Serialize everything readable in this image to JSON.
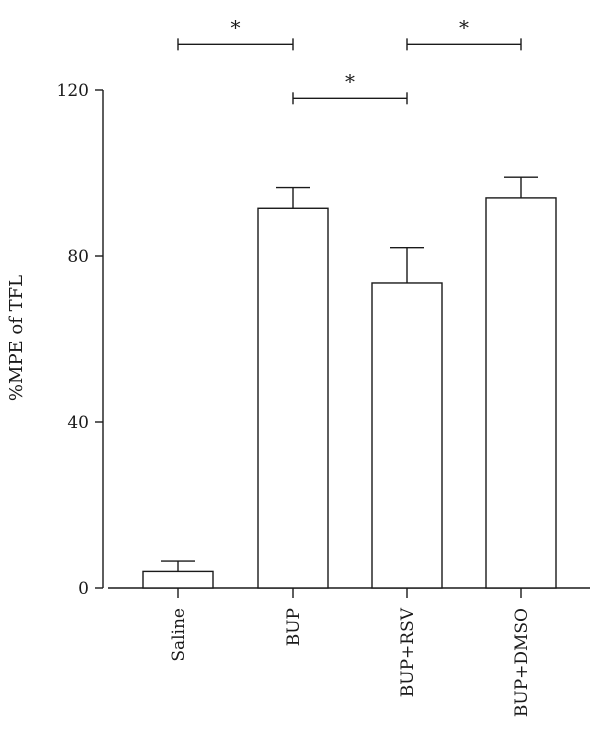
{
  "chart_data": {
    "type": "bar",
    "categories": [
      "Saline",
      "BUP",
      "BUP+RSV",
      "BUP+DMSO"
    ],
    "values": [
      4,
      91.5,
      73.5,
      94
    ],
    "error_upper": [
      6.5,
      96.5,
      82,
      99
    ],
    "title": "",
    "xlabel": "",
    "ylabel": "%MPE of TFL",
    "ylim": [
      0,
      120
    ],
    "yticks": [
      0,
      40,
      80,
      120
    ],
    "grid": false,
    "bar_fill": "#ffffff",
    "stroke_color": "#1a1a1a",
    "significance": [
      {
        "from": "Saline",
        "to": "BUP",
        "label": "*",
        "y": 131
      },
      {
        "from": "BUP+RSV",
        "to": "BUP+DMSO",
        "label": "*",
        "y": 131
      },
      {
        "from": "BUP",
        "to": "BUP+RSV",
        "label": "*",
        "y": 118
      }
    ]
  }
}
